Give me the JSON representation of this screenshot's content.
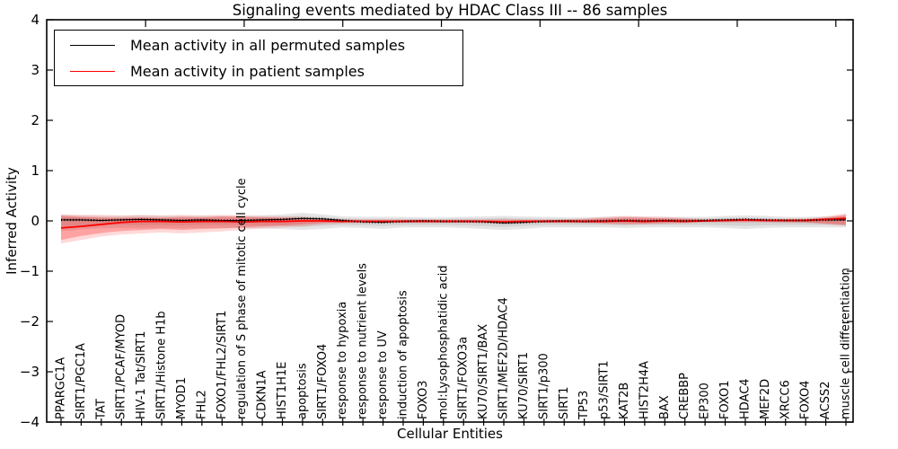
{
  "figure": {
    "title": "Signaling events mediated by HDAC Class III -- 86 samples",
    "xlabel": "Cellular Entities",
    "ylabel": "Inferred Activity"
  },
  "legend": {
    "entries": [
      {
        "label": "Mean activity in all permuted samples",
        "color": "#000000"
      },
      {
        "label": "Mean activity in patient samples",
        "color": "#ff0000"
      }
    ]
  },
  "chart_data": {
    "type": "line",
    "title": "Signaling events mediated by HDAC Class III -- 86 samples",
    "xlabel": "Cellular Entities",
    "ylabel": "Inferred Activity",
    "ylim": [
      -4,
      4
    ],
    "yticks": [
      -4,
      -3,
      -2,
      -1,
      0,
      1,
      2,
      3,
      4
    ],
    "yticklabels": [
      "−4",
      "−3",
      "−2",
      "−1",
      "0",
      "1",
      "2",
      "3",
      "4"
    ],
    "grid": false,
    "legend_position": "upper left",
    "x_tick_label_rotation": 90,
    "top_tick_positions": [
      4.2,
      9.1,
      14.0,
      18.9,
      23.8,
      28.7,
      33.6,
      38.5
    ],
    "categories": [
      "PPARGC1A",
      "SIRT1/PGC1A",
      "TAT",
      "SIRT1/PCAF/MYOD",
      "HIV-1 Tat/SIRT1",
      "SIRT1/Histone H1b",
      "MYOD1",
      "FHL2",
      "FOXO1/FHL2/SIRT1",
      "regulation of S phase of mitotic cell cycle",
      "CDKN1A",
      "HIST1H1E",
      "apoptosis",
      "SIRT1/FOXO4",
      "response to hypoxia",
      "response to nutrient levels",
      "response to UV",
      "induction of apoptosis",
      "FOXO3",
      "mol:Lysophosphatidic acid",
      "SIRT1/FOXO3a",
      "KU70/SIRT1/BAX",
      "SIRT1/MEF2D/HDAC4",
      "KU70/SIRT1",
      "SIRT1/p300",
      "SIRT1",
      "TP53",
      "p53/SIRT1",
      "KAT2B",
      "HIST2H4A",
      "BAX",
      "CREBBP",
      "EP300",
      "FOXO1",
      "HDAC4",
      "MEF2D",
      "XRCC6",
      "FOXO4",
      "ACSS2",
      "muscle cell differentiation"
    ],
    "series": [
      {
        "name": "Mean activity in all permuted samples",
        "color": "#000000",
        "line_width": 1,
        "tick_markers": true,
        "values": [
          0.02,
          0.02,
          0.01,
          0.02,
          0.03,
          0.02,
          0.01,
          0.02,
          0.01,
          0.01,
          0.02,
          0.03,
          0.05,
          0.04,
          0.01,
          -0.02,
          -0.03,
          -0.01,
          0.0,
          -0.01,
          -0.01,
          -0.02,
          -0.04,
          -0.03,
          -0.01,
          0.0,
          -0.01,
          0.0,
          0.01,
          0.0,
          0.01,
          0.0,
          0.01,
          0.02,
          0.03,
          0.02,
          0.01,
          0.01,
          0.02,
          0.02
        ]
      },
      {
        "name": "Mean activity in patient samples",
        "color": "#ff0000",
        "line_width": 1.8,
        "tick_markers": false,
        "values": [
          -0.14,
          -0.11,
          -0.07,
          -0.03,
          -0.01,
          -0.01,
          -0.02,
          -0.01,
          -0.01,
          -0.02,
          -0.01,
          -0.01,
          0.0,
          0.0,
          -0.01,
          -0.01,
          -0.01,
          -0.01,
          -0.01,
          -0.01,
          -0.01,
          -0.01,
          -0.02,
          -0.01,
          -0.01,
          -0.01,
          -0.01,
          -0.01,
          0.0,
          -0.01,
          0.0,
          -0.01,
          0.0,
          0.01,
          0.02,
          0.01,
          0.01,
          0.01,
          0.03,
          0.05
        ]
      }
    ],
    "bands": [
      {
        "name": "permuted-outer",
        "color": "#aaaaaa",
        "opacity": 0.3,
        "upper": [
          0.12,
          0.11,
          0.1,
          0.1,
          0.11,
          0.1,
          0.1,
          0.1,
          0.1,
          0.1,
          0.11,
          0.13,
          0.16,
          0.13,
          0.09,
          0.08,
          0.08,
          0.08,
          0.07,
          0.07,
          0.08,
          0.09,
          0.1,
          0.09,
          0.08,
          0.07,
          0.07,
          0.08,
          0.09,
          0.08,
          0.08,
          0.08,
          0.08,
          0.1,
          0.11,
          0.1,
          0.08,
          0.08,
          0.09,
          0.11
        ],
        "lower": [
          -0.2,
          -0.17,
          -0.15,
          -0.14,
          -0.15,
          -0.14,
          -0.15,
          -0.14,
          -0.14,
          -0.14,
          -0.15,
          -0.16,
          -0.18,
          -0.16,
          -0.13,
          -0.14,
          -0.16,
          -0.13,
          -0.13,
          -0.13,
          -0.14,
          -0.16,
          -0.18,
          -0.16,
          -0.13,
          -0.13,
          -0.13,
          -0.13,
          -0.14,
          -0.13,
          -0.13,
          -0.13,
          -0.13,
          -0.14,
          -0.16,
          -0.14,
          -0.13,
          -0.13,
          -0.13,
          -0.13
        ]
      },
      {
        "name": "permuted-inner",
        "color": "#aaaaaa",
        "opacity": 0.3,
        "upper": [
          0.08,
          0.07,
          0.06,
          0.06,
          0.07,
          0.06,
          0.06,
          0.06,
          0.06,
          0.06,
          0.07,
          0.08,
          0.1,
          0.08,
          0.05,
          0.04,
          0.04,
          0.04,
          0.04,
          0.04,
          0.05,
          0.05,
          0.06,
          0.05,
          0.04,
          0.04,
          0.04,
          0.05,
          0.05,
          0.05,
          0.05,
          0.05,
          0.05,
          0.06,
          0.07,
          0.06,
          0.05,
          0.05,
          0.06,
          0.07
        ],
        "lower": [
          -0.12,
          -0.1,
          -0.09,
          -0.08,
          -0.09,
          -0.08,
          -0.09,
          -0.08,
          -0.08,
          -0.08,
          -0.09,
          -0.1,
          -0.12,
          -0.1,
          -0.08,
          -0.09,
          -0.1,
          -0.08,
          -0.08,
          -0.08,
          -0.09,
          -0.1,
          -0.12,
          -0.1,
          -0.08,
          -0.08,
          -0.08,
          -0.08,
          -0.09,
          -0.08,
          -0.08,
          -0.08,
          -0.08,
          -0.09,
          -0.1,
          -0.09,
          -0.08,
          -0.08,
          -0.08,
          -0.08
        ]
      },
      {
        "name": "patient-outer",
        "color": "#ff0000",
        "opacity": 0.15,
        "upper": [
          0.13,
          0.12,
          0.12,
          0.11,
          0.12,
          0.11,
          0.12,
          0.11,
          0.12,
          0.11,
          0.1,
          0.09,
          0.08,
          0.05,
          0.04,
          0.03,
          0.03,
          0.03,
          0.03,
          0.03,
          0.03,
          0.03,
          0.04,
          0.03,
          0.03,
          0.03,
          0.05,
          0.08,
          0.1,
          0.09,
          0.08,
          0.06,
          0.04,
          0.03,
          0.04,
          0.03,
          0.04,
          0.05,
          0.09,
          0.15
        ],
        "lower": [
          -0.45,
          -0.38,
          -0.31,
          -0.27,
          -0.25,
          -0.23,
          -0.25,
          -0.23,
          -0.21,
          -0.18,
          -0.15,
          -0.13,
          -0.11,
          -0.07,
          -0.05,
          -0.04,
          -0.04,
          -0.04,
          -0.04,
          -0.04,
          -0.04,
          -0.04,
          -0.05,
          -0.04,
          -0.04,
          -0.04,
          -0.05,
          -0.06,
          -0.08,
          -0.07,
          -0.06,
          -0.05,
          -0.03,
          -0.03,
          -0.03,
          -0.03,
          -0.04,
          -0.04,
          -0.07,
          -0.1
        ]
      },
      {
        "name": "patient-inner",
        "color": "#ff0000",
        "opacity": 0.25,
        "upper": [
          0.1,
          0.08,
          0.07,
          0.06,
          0.07,
          0.06,
          0.08,
          0.07,
          0.09,
          0.08,
          0.07,
          0.06,
          0.05,
          0.03,
          0.02,
          0.02,
          0.02,
          0.02,
          0.02,
          0.02,
          0.02,
          0.02,
          0.02,
          0.02,
          0.02,
          0.02,
          0.03,
          0.05,
          0.07,
          0.06,
          0.05,
          0.04,
          0.02,
          0.02,
          0.03,
          0.02,
          0.02,
          0.03,
          0.06,
          0.12
        ],
        "lower": [
          -0.38,
          -0.3,
          -0.24,
          -0.2,
          -0.18,
          -0.16,
          -0.18,
          -0.16,
          -0.15,
          -0.13,
          -0.11,
          -0.09,
          -0.07,
          -0.04,
          -0.03,
          -0.02,
          -0.02,
          -0.02,
          -0.02,
          -0.02,
          -0.02,
          -0.02,
          -0.03,
          -0.02,
          -0.02,
          -0.02,
          -0.03,
          -0.04,
          -0.05,
          -0.05,
          -0.04,
          -0.03,
          -0.02,
          -0.02,
          -0.02,
          -0.02,
          -0.02,
          -0.03,
          -0.05,
          -0.08
        ]
      }
    ]
  }
}
